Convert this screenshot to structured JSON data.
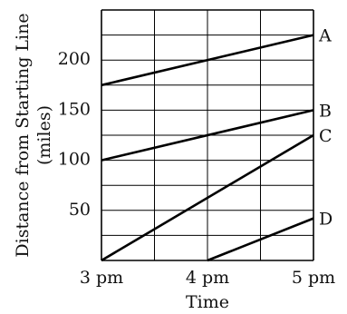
{
  "chart_data": {
    "type": "line",
    "xlabel": "Time",
    "ylabel_lines": [
      "Distance from Starting Line",
      "(miles)"
    ],
    "x_ticks": [
      {
        "value": 3,
        "label": "3 pm"
      },
      {
        "value": 4,
        "label": "4 pm"
      },
      {
        "value": 5,
        "label": "5 pm"
      }
    ],
    "y_ticks": [
      {
        "value": 50,
        "label": "50"
      },
      {
        "value": 100,
        "label": "100"
      },
      {
        "value": 150,
        "label": "150"
      },
      {
        "value": 200,
        "label": "200"
      }
    ],
    "xlim": [
      3,
      5
    ],
    "ylim": [
      0,
      250
    ],
    "grid": {
      "x_step": 0.5,
      "y_step": 25
    },
    "series": [
      {
        "name": "A",
        "points": [
          [
            3,
            175
          ],
          [
            5,
            225
          ]
        ]
      },
      {
        "name": "B",
        "points": [
          [
            3,
            100
          ],
          [
            5,
            150
          ]
        ]
      },
      {
        "name": "C",
        "points": [
          [
            3,
            0
          ],
          [
            5,
            125
          ]
        ]
      },
      {
        "name": "D",
        "points": [
          [
            4,
            0
          ],
          [
            5,
            42
          ]
        ]
      }
    ],
    "colors": {
      "line": "#000000",
      "grid": "#000000"
    }
  }
}
